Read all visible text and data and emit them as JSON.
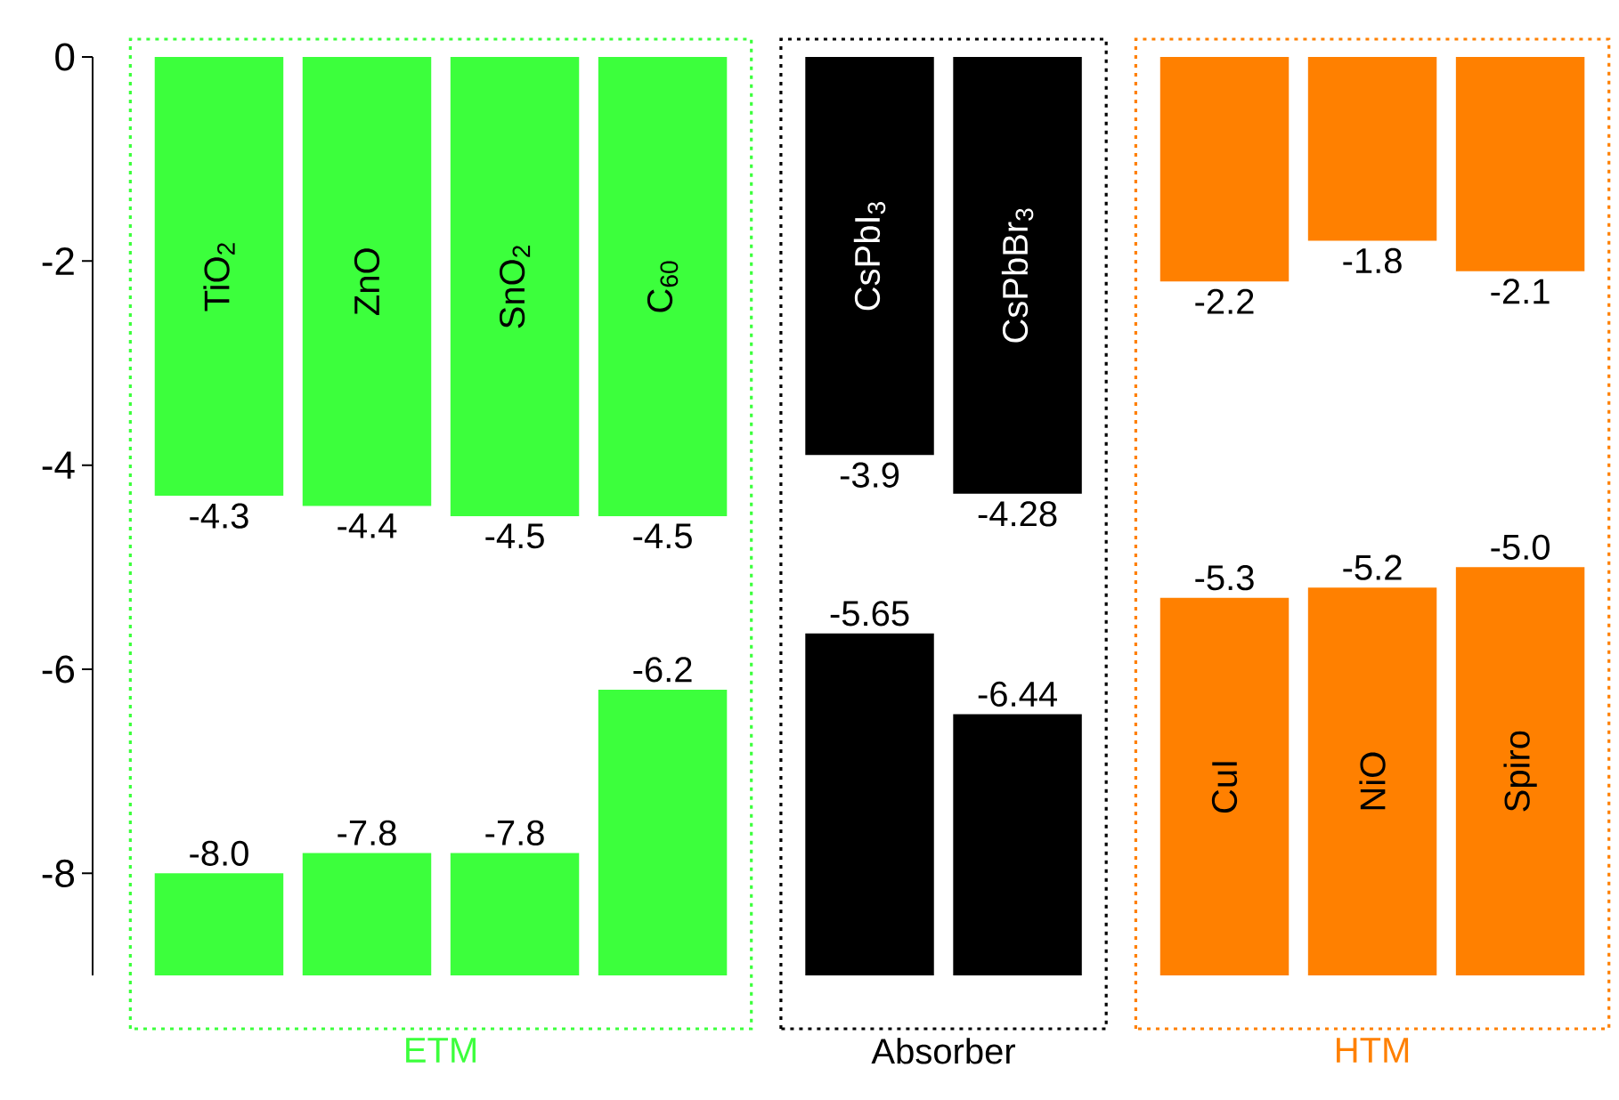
{
  "chart_data": {
    "type": "bar",
    "categories": [
      "TiO$_{2}$",
      "ZnO",
      "SnO$_{2}$",
      "C$_{60}$",
      "CsPbI$_{3}$",
      "CsPbBr$_{3}$",
      "CuI",
      "NiO",
      "Spiro"
    ],
    "series": [
      {
        "colors": [
          "#3cff3c",
          "#3cff3c",
          "#3cff3c",
          "#3cff3c",
          "#000000",
          "#000000",
          "#ff8000",
          "#ff8000",
          "#ff8000"
        ],
        "base": [
          0,
          0,
          0,
          0,
          0,
          0,
          0,
          0,
          0
        ],
        "values": [
          -4.3,
          -4.4,
          -4.5,
          -4.5,
          -3.9,
          -4.28,
          -2.2,
          -1.8,
          -2.1
        ],
        "value_labels": [
          "-4.3",
          "-4.4",
          "-4.5",
          "-4.5",
          "-3.9",
          "-4.28",
          "-2.2",
          "-1.8",
          "-2.1"
        ]
      },
      {
        "colors": [
          "#3cff3c",
          "#3cff3c",
          "#3cff3c",
          "#3cff3c",
          "#000000",
          "#000000",
          "#ff8000",
          "#ff8000",
          "#ff8000"
        ],
        "base": [
          -9,
          -9,
          -9,
          -9,
          -9,
          -9,
          -9,
          -9,
          -9
        ],
        "values": [
          1.0,
          1.2,
          1.2,
          2.8,
          3.35,
          2.56,
          3.7,
          3.8,
          4.0
        ],
        "value_labels": [
          "-8.0",
          "-7.8",
          "-7.8",
          "-6.2",
          "-5.65",
          "-6.44",
          "-5.3",
          "-5.2",
          "-5.0"
        ]
      }
    ],
    "ylim": [
      -9,
      0
    ],
    "yticks": [
      0,
      -2,
      -4,
      -6,
      -8
    ],
    "annotations": [
      "ETM",
      "Absorber",
      "HTM"
    ]
  }
}
